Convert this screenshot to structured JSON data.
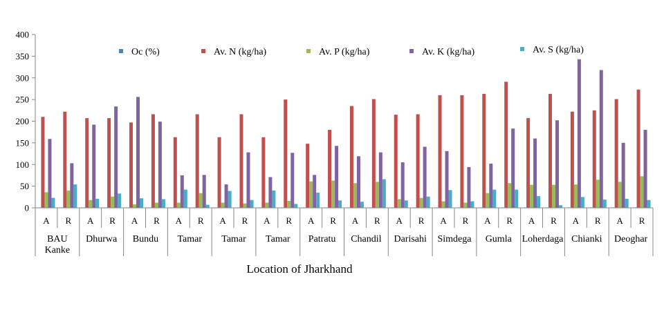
{
  "chart_data": {
    "type": "bar",
    "xlabel": "Location of Jharkhand",
    "ylabel": "",
    "ylim": [
      0,
      400
    ],
    "yticks": [
      0,
      50,
      100,
      150,
      200,
      250,
      300,
      350,
      400
    ],
    "grid": false,
    "legend_position": "top",
    "groups": [
      {
        "lines": [
          "BAU",
          "Kanke"
        ],
        "subs": [
          "A",
          "R"
        ]
      },
      {
        "lines": [
          "Dhurwa"
        ],
        "subs": [
          "A",
          "R"
        ]
      },
      {
        "lines": [
          "Bundu"
        ],
        "subs": [
          "A",
          "R"
        ]
      },
      {
        "lines": [
          "Tamar"
        ],
        "subs": [
          "A",
          "R"
        ]
      },
      {
        "lines": [
          "Tamar"
        ],
        "subs": [
          "A",
          "R"
        ]
      },
      {
        "lines": [
          "Tamar"
        ],
        "subs": [
          "A",
          "R"
        ]
      },
      {
        "lines": [
          "Patratu"
        ],
        "subs": [
          "A",
          "R"
        ]
      },
      {
        "lines": [
          "Chandil"
        ],
        "subs": [
          "A",
          "R"
        ]
      },
      {
        "lines": [
          "Darisahi"
        ],
        "subs": [
          "A",
          "R"
        ]
      },
      {
        "lines": [
          "Simdega"
        ],
        "subs": [
          "A",
          "R"
        ]
      },
      {
        "lines": [
          "Gumla"
        ],
        "subs": [
          "A",
          "R"
        ]
      },
      {
        "lines": [
          "Loherdaga"
        ],
        "subs": [
          "A",
          "R"
        ]
      },
      {
        "lines": [
          "Chianki"
        ],
        "subs": [
          "A",
          "R"
        ]
      },
      {
        "lines": [
          "Deoghar"
        ],
        "subs": [
          "A",
          "R"
        ]
      }
    ],
    "series": [
      {
        "name": "Oc (%)",
        "color": "#4F81BD",
        "values": [
          0.6,
          0.5,
          0.5,
          0.5,
          0.6,
          0.5,
          0.5,
          0.5,
          0.5,
          0.5,
          0.5,
          0.5,
          0.5,
          0.5,
          0.5,
          0.5,
          0.5,
          0.5,
          0.5,
          0.5,
          0.5,
          0.5,
          0.5,
          0.5,
          0.5,
          0.5,
          0.5,
          0.5
        ]
      },
      {
        "name": "Av. N (kg/ha)",
        "color": "#C0504D",
        "values": [
          210,
          222,
          207,
          207,
          197,
          216,
          163,
          216,
          163,
          216,
          163,
          250,
          148,
          180,
          235,
          251,
          215,
          216,
          260,
          260,
          263,
          291,
          207,
          263,
          222,
          225,
          251,
          273
        ]
      },
      {
        "name": "Av. P (kg/ha)",
        "color": "#9BBB59",
        "values": [
          36,
          40,
          18,
          26,
          8,
          12,
          12,
          34,
          12,
          10,
          12,
          16,
          61,
          63,
          57,
          60,
          20,
          23,
          15,
          12,
          34,
          57,
          53,
          53,
          54,
          65,
          60,
          73
        ]
      },
      {
        "name": "Av. K (kg/ha)",
        "color": "#8064A2",
        "values": [
          159,
          103,
          192,
          234,
          256,
          199,
          75,
          76,
          54,
          128,
          71,
          127,
          76,
          143,
          119,
          128,
          105,
          141,
          131,
          94,
          102,
          183,
          160,
          202,
          343,
          318,
          150,
          180
        ]
      },
      {
        "name": "Av. S (kg/ha)",
        "color": "#4BACC6",
        "values": [
          23,
          54,
          21,
          33,
          22,
          20,
          42,
          7,
          39,
          18,
          40,
          9,
          35,
          17,
          14,
          66,
          17,
          26,
          41,
          15,
          42,
          42,
          27,
          6,
          25,
          19,
          21,
          18
        ]
      }
    ]
  }
}
